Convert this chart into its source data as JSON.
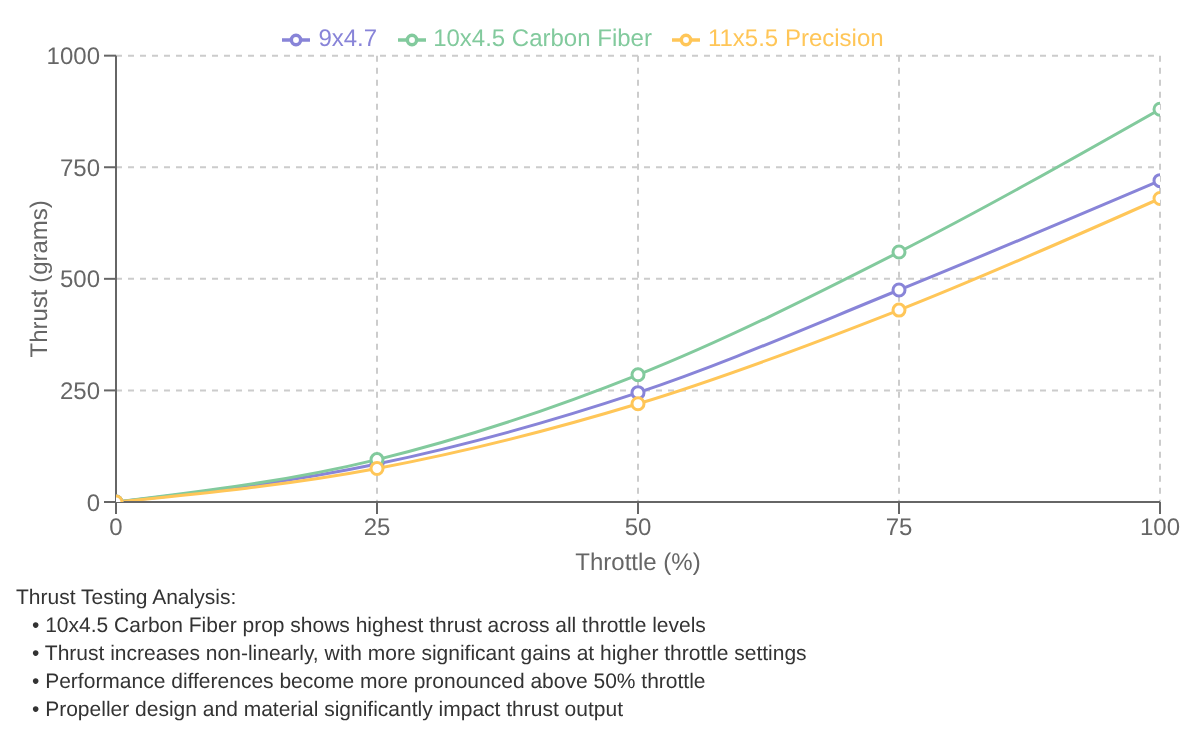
{
  "chart_data": {
    "type": "line",
    "xlabel": "Throttle (%)",
    "ylabel": "Thrust (grams)",
    "x": [
      0,
      25,
      50,
      75,
      100
    ],
    "xlim": [
      0,
      100
    ],
    "xticks": [
      0,
      25,
      50,
      75,
      100
    ],
    "ylim": [
      0,
      1000
    ],
    "yticks": [
      0,
      250,
      500,
      750,
      1000
    ],
    "grid": true,
    "legend": "top",
    "marker": "circle",
    "line_style": "solid",
    "series": [
      {
        "name": "9x4.7",
        "color": "#8884d8",
        "values": [
          0,
          85,
          245,
          475,
          720
        ]
      },
      {
        "name": "10x4.5 Carbon Fiber",
        "color": "#82ca9d",
        "values": [
          0,
          95,
          285,
          560,
          880
        ]
      },
      {
        "name": "11x5.5 Precision",
        "color": "#ffc658",
        "values": [
          0,
          75,
          220,
          430,
          680
        ]
      }
    ],
    "annotations": [
      "Thrust Testing Analysis:",
      "• 10x4.5 Carbon Fiber prop shows highest thrust across all throttle levels",
      "• Thrust increases non-linearly, with more significant gains at higher throttle settings",
      "• Performance differences become more pronounced above 50% throttle",
      "• Propeller design and material significantly impact thrust output"
    ]
  }
}
